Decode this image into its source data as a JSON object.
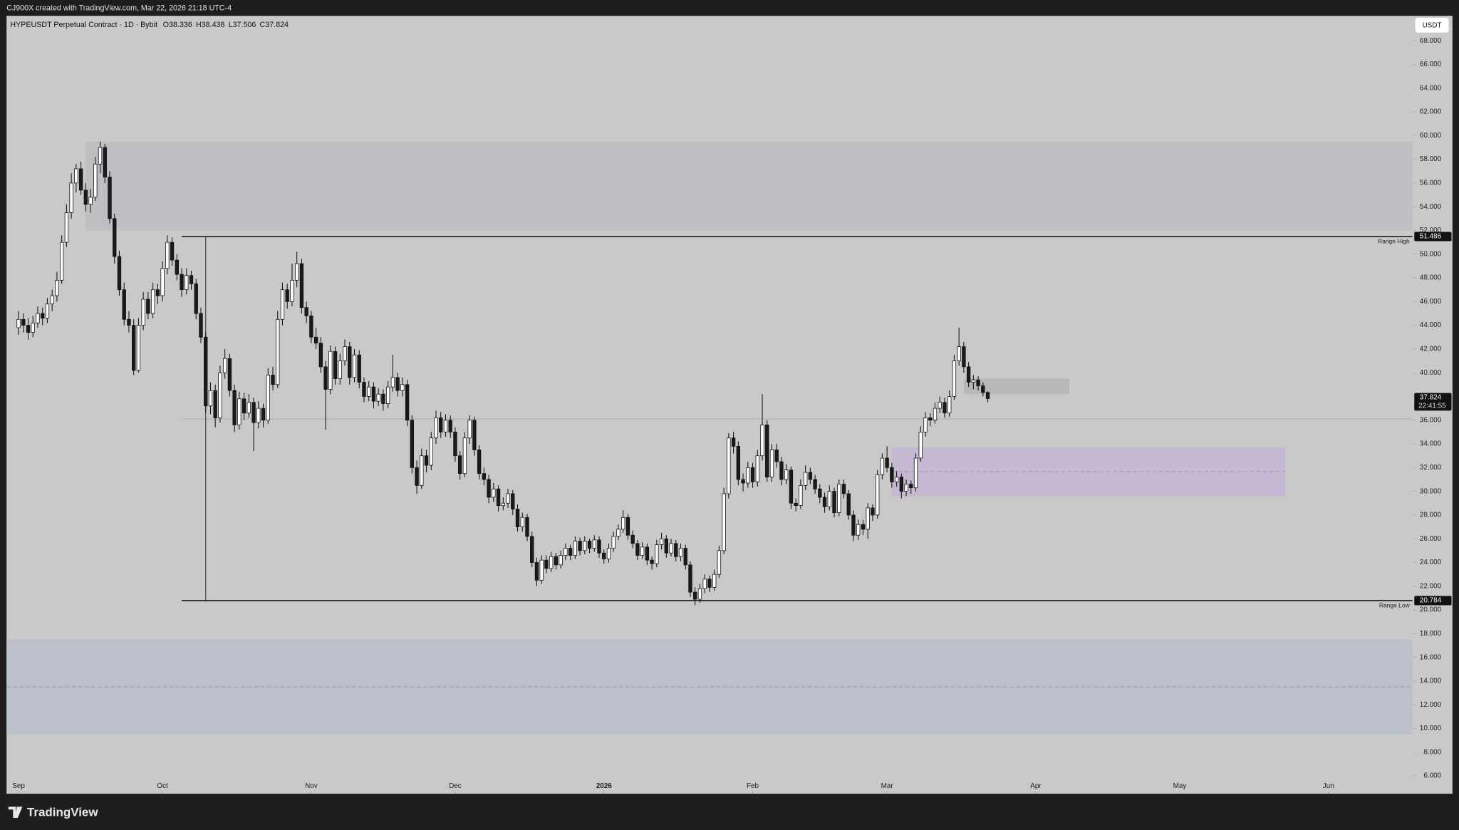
{
  "header": {
    "credit": "CJ900X created with TradingView.com, Mar 22, 2026 21:18 UTC-4",
    "brand": "TradingView"
  },
  "chart_data": {
    "type": "candlestick",
    "title": "HYPEUSDT Perpetual Contract · 1D · Bybit",
    "ohlc_header": [
      {
        "label": "O",
        "value": 38.336
      },
      {
        "label": "H",
        "value": 38.438
      },
      {
        "label": "L",
        "value": 37.506
      },
      {
        "label": "C",
        "value": 37.824
      }
    ],
    "currency": "USDT",
    "countdown": "22:41:55",
    "up_color": "#ffffff",
    "down_color": "#1a1a1a",
    "border_color": "#111111",
    "xlim": [
      -2.5,
      290.5
    ],
    "ylim": [
      4.5,
      70.1
    ],
    "xticks": [
      {
        "value": 0,
        "label": "Sep"
      },
      {
        "value": 30,
        "label": "Oct"
      },
      {
        "value": 61,
        "label": "Nov"
      },
      {
        "value": 91,
        "label": "Dec"
      },
      {
        "value": 122,
        "label": "2026"
      },
      {
        "value": 153,
        "label": "Feb"
      },
      {
        "value": 181,
        "label": "Mar"
      },
      {
        "value": 212,
        "label": "Apr"
      },
      {
        "value": 242,
        "label": "May"
      },
      {
        "value": 273,
        "label": "Jun"
      }
    ],
    "yticks": [
      {
        "value": 6,
        "label": "6.000"
      },
      {
        "value": 8,
        "label": "8.000"
      },
      {
        "value": 10,
        "label": "10.000"
      },
      {
        "value": 12,
        "label": "12.000"
      },
      {
        "value": 14,
        "label": "14.000"
      },
      {
        "value": 16,
        "label": "16.000"
      },
      {
        "value": 18,
        "label": "18.000"
      },
      {
        "value": 20,
        "label": "20.000"
      },
      {
        "value": 22,
        "label": "22.000"
      },
      {
        "value": 24,
        "label": "24.000"
      },
      {
        "value": 26,
        "label": "26.000"
      },
      {
        "value": 28,
        "label": "28.000"
      },
      {
        "value": 30,
        "label": "30.000"
      },
      {
        "value": 32,
        "label": "32.000"
      },
      {
        "value": 34,
        "label": "34.000"
      },
      {
        "value": 36,
        "label": "36.000"
      },
      {
        "value": 38,
        "label": "38.000"
      },
      {
        "value": 40,
        "label": "40.000"
      },
      {
        "value": 42,
        "label": "42.000"
      },
      {
        "value": 44,
        "label": "44.000"
      },
      {
        "value": 46,
        "label": "46.000"
      },
      {
        "value": 48,
        "label": "48.000"
      },
      {
        "value": 50,
        "label": "50.000"
      },
      {
        "value": 52,
        "label": "52.000"
      },
      {
        "value": 54,
        "label": "54.000"
      },
      {
        "value": 56,
        "label": "56.000"
      },
      {
        "value": 58,
        "label": "58.000"
      },
      {
        "value": 60,
        "label": "60.000"
      },
      {
        "value": 62,
        "label": "62.000"
      },
      {
        "value": 64,
        "label": "64.000"
      },
      {
        "value": 66,
        "label": "66.000"
      },
      {
        "value": 68,
        "label": "68.000"
      }
    ],
    "zones": [
      {
        "start": 14,
        "low": 52.0,
        "high": 59.5,
        "color": "#bdbec2"
      },
      {
        "start": 182,
        "end": 264,
        "low": 29.6,
        "high": 33.7,
        "mid": 31.65,
        "color": "#c3b6d4"
      },
      {
        "start": 197,
        "end": 219,
        "low": 38.2,
        "high": 39.5,
        "color": "#b6b6b6"
      },
      {
        "low": 9.5,
        "high": 17.5,
        "mid": 13.5,
        "color": "#babfca"
      }
    ],
    "lines": [
      {
        "label": "Range High",
        "value": 51.486,
        "start": 34
      },
      {
        "label": "Range Low",
        "value": 20.784,
        "start": 34
      }
    ],
    "level_lines": [
      {
        "value": 36.1,
        "start": 34
      }
    ],
    "vertical_lines": [
      {
        "x": 39,
        "from": 20.784,
        "to": 51.486
      }
    ],
    "ohlc": [
      [
        43.8,
        45.2,
        43.2,
        44.5
      ],
      [
        44.5,
        45.0,
        43.4,
        44.0
      ],
      [
        44.0,
        44.6,
        42.8,
        43.4
      ],
      [
        43.4,
        44.8,
        43.0,
        44.2
      ],
      [
        44.2,
        45.6,
        43.8,
        45.0
      ],
      [
        45.0,
        45.5,
        44.0,
        44.6
      ],
      [
        44.6,
        46.3,
        44.2,
        45.8
      ],
      [
        45.8,
        47.0,
        45.2,
        46.5
      ],
      [
        46.5,
        48.5,
        46.0,
        47.8
      ],
      [
        47.8,
        51.6,
        47.5,
        51.0
      ],
      [
        51.0,
        54.2,
        50.6,
        53.5
      ],
      [
        53.5,
        56.8,
        53.0,
        56.0
      ],
      [
        56.0,
        57.6,
        55.2,
        57.2
      ],
      [
        57.2,
        57.8,
        55.0,
        55.4
      ],
      [
        55.4,
        56.0,
        53.6,
        54.2
      ],
      [
        54.2,
        55.5,
        53.5,
        54.8
      ],
      [
        54.8,
        58.2,
        54.5,
        57.6
      ],
      [
        57.6,
        59.5,
        56.8,
        59.0
      ],
      [
        59.0,
        59.3,
        56.0,
        56.5
      ],
      [
        56.5,
        57.0,
        52.6,
        53.0
      ],
      [
        53.0,
        53.4,
        49.2,
        49.8
      ],
      [
        49.8,
        50.3,
        46.5,
        47.0
      ],
      [
        47.0,
        47.6,
        44.0,
        44.5
      ],
      [
        44.5,
        45.2,
        43.4,
        44.0
      ],
      [
        44.0,
        44.5,
        39.8,
        40.2
      ],
      [
        40.2,
        44.6,
        40.0,
        44.0
      ],
      [
        44.0,
        46.8,
        43.6,
        46.2
      ],
      [
        46.2,
        46.8,
        44.5,
        45.0
      ],
      [
        45.0,
        47.6,
        44.6,
        47.0
      ],
      [
        47.0,
        47.5,
        45.8,
        46.5
      ],
      [
        46.5,
        49.4,
        46.0,
        48.8
      ],
      [
        48.8,
        51.6,
        48.3,
        51.0
      ],
      [
        51.0,
        51.4,
        49.0,
        49.5
      ],
      [
        49.5,
        50.0,
        47.8,
        48.3
      ],
      [
        48.3,
        48.8,
        46.4,
        47.0
      ],
      [
        47.0,
        48.8,
        46.6,
        48.2
      ],
      [
        48.2,
        48.6,
        47.0,
        47.5
      ],
      [
        47.5,
        47.9,
        44.5,
        45.0
      ],
      [
        45.0,
        45.5,
        42.5,
        43.0
      ],
      [
        43.0,
        43.4,
        36.6,
        37.2
      ],
      [
        37.2,
        39.2,
        36.5,
        38.5
      ],
      [
        38.5,
        39.0,
        35.4,
        36.2
      ],
      [
        36.2,
        40.6,
        35.8,
        40.0
      ],
      [
        40.0,
        42.0,
        39.5,
        41.2
      ],
      [
        41.2,
        41.6,
        38.0,
        38.5
      ],
      [
        38.5,
        39.0,
        35.0,
        35.6
      ],
      [
        35.6,
        38.4,
        35.2,
        37.8
      ],
      [
        37.8,
        38.3,
        36.0,
        36.6
      ],
      [
        36.6,
        38.2,
        36.2,
        37.5
      ],
      [
        37.5,
        37.9,
        33.4,
        35.8
      ],
      [
        35.8,
        37.6,
        35.3,
        37.0
      ],
      [
        37.0,
        37.4,
        35.4,
        36.0
      ],
      [
        36.0,
        40.4,
        35.7,
        39.8
      ],
      [
        39.8,
        40.5,
        38.5,
        39.0
      ],
      [
        39.0,
        45.2,
        38.7,
        44.5
      ],
      [
        44.5,
        47.6,
        44.0,
        47.0
      ],
      [
        47.0,
        47.5,
        45.4,
        46.0
      ],
      [
        46.0,
        49.2,
        45.6,
        47.8
      ],
      [
        47.8,
        50.2,
        47.2,
        49.2
      ],
      [
        49.2,
        49.6,
        45.0,
        45.5
      ],
      [
        45.5,
        46.0,
        44.2,
        44.8
      ],
      [
        44.8,
        45.2,
        42.5,
        43.0
      ],
      [
        43.0,
        43.8,
        42.0,
        42.5
      ],
      [
        42.5,
        43.0,
        40.0,
        40.5
      ],
      [
        40.5,
        41.0,
        35.2,
        38.6
      ],
      [
        38.6,
        42.3,
        38.2,
        41.8
      ],
      [
        41.8,
        42.2,
        39.0,
        39.5
      ],
      [
        39.5,
        41.6,
        39.0,
        41.0
      ],
      [
        41.0,
        42.8,
        40.6,
        42.2
      ],
      [
        42.2,
        42.6,
        39.0,
        39.6
      ],
      [
        39.6,
        42.0,
        39.2,
        41.5
      ],
      [
        41.5,
        41.9,
        38.7,
        39.2
      ],
      [
        39.2,
        39.6,
        37.5,
        38.0
      ],
      [
        38.0,
        39.3,
        37.6,
        38.8
      ],
      [
        38.8,
        39.2,
        37.0,
        37.6
      ],
      [
        37.6,
        38.7,
        37.2,
        38.2
      ],
      [
        38.2,
        38.6,
        36.8,
        37.4
      ],
      [
        37.4,
        39.3,
        37.0,
        38.8
      ],
      [
        38.8,
        41.5,
        38.4,
        39.6
      ],
      [
        39.6,
        40.0,
        38.0,
        38.5
      ],
      [
        38.5,
        39.6,
        38.0,
        39.0
      ],
      [
        39.0,
        39.4,
        35.5,
        36.0
      ],
      [
        36.0,
        36.4,
        31.5,
        32.0
      ],
      [
        32.0,
        32.6,
        29.8,
        30.5
      ],
      [
        30.5,
        33.6,
        30.2,
        33.0
      ],
      [
        33.0,
        33.5,
        31.6,
        32.2
      ],
      [
        32.2,
        35.0,
        31.8,
        34.5
      ],
      [
        34.5,
        36.8,
        34.0,
        36.2
      ],
      [
        36.2,
        36.7,
        34.5,
        35.0
      ],
      [
        35.0,
        36.5,
        34.6,
        36.0
      ],
      [
        36.0,
        36.4,
        34.5,
        35.0
      ],
      [
        35.0,
        35.4,
        32.5,
        33.0
      ],
      [
        33.0,
        33.4,
        31.0,
        31.5
      ],
      [
        31.5,
        35.0,
        31.2,
        34.5
      ],
      [
        34.5,
        36.4,
        34.0,
        36.0
      ],
      [
        36.0,
        36.3,
        33.0,
        33.5
      ],
      [
        33.5,
        33.9,
        31.0,
        31.5
      ],
      [
        31.5,
        32.0,
        30.5,
        31.0
      ],
      [
        31.0,
        31.4,
        29.0,
        29.5
      ],
      [
        29.5,
        30.7,
        29.1,
        30.2
      ],
      [
        30.2,
        30.5,
        28.3,
        28.8
      ],
      [
        28.8,
        29.5,
        28.4,
        29.0
      ],
      [
        29.0,
        30.2,
        28.6,
        29.8
      ],
      [
        29.8,
        30.1,
        28.0,
        28.5
      ],
      [
        28.5,
        28.9,
        26.6,
        27.0
      ],
      [
        27.0,
        28.2,
        26.6,
        27.8
      ],
      [
        27.8,
        28.1,
        25.8,
        26.2
      ],
      [
        26.2,
        26.6,
        23.6,
        24.0
      ],
      [
        24.0,
        24.4,
        22.0,
        22.5
      ],
      [
        22.5,
        24.6,
        22.2,
        24.2
      ],
      [
        24.2,
        24.6,
        23.1,
        23.5
      ],
      [
        23.5,
        24.9,
        23.2,
        24.5
      ],
      [
        24.5,
        24.8,
        23.4,
        23.8
      ],
      [
        23.8,
        25.0,
        23.5,
        24.6
      ],
      [
        24.6,
        25.6,
        24.2,
        25.2
      ],
      [
        25.2,
        25.5,
        24.2,
        24.6
      ],
      [
        24.6,
        26.2,
        24.3,
        25.8
      ],
      [
        25.8,
        26.1,
        24.6,
        25.0
      ],
      [
        25.0,
        26.2,
        24.7,
        25.8
      ],
      [
        25.8,
        26.0,
        24.8,
        25.2
      ],
      [
        25.2,
        26.3,
        24.9,
        25.9
      ],
      [
        25.9,
        26.2,
        24.4,
        24.8
      ],
      [
        24.8,
        25.1,
        23.9,
        24.3
      ],
      [
        24.3,
        25.6,
        24.0,
        25.2
      ],
      [
        25.2,
        26.6,
        24.9,
        26.2
      ],
      [
        26.2,
        27.2,
        25.9,
        26.8
      ],
      [
        26.8,
        28.4,
        26.5,
        27.8
      ],
      [
        27.8,
        28.1,
        25.9,
        26.3
      ],
      [
        26.3,
        26.7,
        25.2,
        25.6
      ],
      [
        25.6,
        25.9,
        24.2,
        24.6
      ],
      [
        24.6,
        25.7,
        24.3,
        25.3
      ],
      [
        25.3,
        25.6,
        23.8,
        24.2
      ],
      [
        24.2,
        24.5,
        23.4,
        23.9
      ],
      [
        23.9,
        25.9,
        23.6,
        25.5
      ],
      [
        25.5,
        26.5,
        25.1,
        26.0
      ],
      [
        26.0,
        26.3,
        24.4,
        24.8
      ],
      [
        24.8,
        26.0,
        24.5,
        25.6
      ],
      [
        25.6,
        25.9,
        24.1,
        24.5
      ],
      [
        24.5,
        25.6,
        24.1,
        25.2
      ],
      [
        25.2,
        25.5,
        23.4,
        23.8
      ],
      [
        23.8,
        24.1,
        21.1,
        21.5
      ],
      [
        21.5,
        21.9,
        20.4,
        20.9
      ],
      [
        20.9,
        22.2,
        20.6,
        21.8
      ],
      [
        21.8,
        23.0,
        21.4,
        22.6
      ],
      [
        22.6,
        22.9,
        21.5,
        21.9
      ],
      [
        21.9,
        23.4,
        21.6,
        23.0
      ],
      [
        23.0,
        25.4,
        22.7,
        25.0
      ],
      [
        25.0,
        30.3,
        24.7,
        29.8
      ],
      [
        29.8,
        34.9,
        29.4,
        34.5
      ],
      [
        34.5,
        35.0,
        33.2,
        33.8
      ],
      [
        33.8,
        34.2,
        30.5,
        31.0
      ],
      [
        31.0,
        31.5,
        30.0,
        30.7
      ],
      [
        30.7,
        32.5,
        30.3,
        32.0
      ],
      [
        32.0,
        32.4,
        30.3,
        30.8
      ],
      [
        30.8,
        33.5,
        30.4,
        33.0
      ],
      [
        33.0,
        38.2,
        32.6,
        35.6
      ],
      [
        35.6,
        36.0,
        30.8,
        31.2
      ],
      [
        31.2,
        34.0,
        30.8,
        33.5
      ],
      [
        33.5,
        34.0,
        32.0,
        32.5
      ],
      [
        32.5,
        32.9,
        30.5,
        31.0
      ],
      [
        31.0,
        32.3,
        30.6,
        31.8
      ],
      [
        31.8,
        32.1,
        28.5,
        29.0
      ],
      [
        29.0,
        29.4,
        28.3,
        28.8
      ],
      [
        28.8,
        31.0,
        28.5,
        30.5
      ],
      [
        30.5,
        32.2,
        30.1,
        31.6
      ],
      [
        31.6,
        32.0,
        30.6,
        31.0
      ],
      [
        31.0,
        31.4,
        29.8,
        30.2
      ],
      [
        30.2,
        30.6,
        29.0,
        29.5
      ],
      [
        29.5,
        29.9,
        28.2,
        28.7
      ],
      [
        28.7,
        30.5,
        28.4,
        30.0
      ],
      [
        30.0,
        30.3,
        27.8,
        28.2
      ],
      [
        28.2,
        31.0,
        27.9,
        30.6
      ],
      [
        30.6,
        31.0,
        29.4,
        29.8
      ],
      [
        29.8,
        30.1,
        27.6,
        28.0
      ],
      [
        28.0,
        28.4,
        25.8,
        26.3
      ],
      [
        26.3,
        27.6,
        25.9,
        27.2
      ],
      [
        27.2,
        27.6,
        26.3,
        26.8
      ],
      [
        26.8,
        29.0,
        26.0,
        28.6
      ],
      [
        28.6,
        28.9,
        27.5,
        28.0
      ],
      [
        28.0,
        31.8,
        27.7,
        31.4
      ],
      [
        31.4,
        33.2,
        31.0,
        32.8
      ],
      [
        32.8,
        33.8,
        31.6,
        32.0
      ],
      [
        32.0,
        32.4,
        30.3,
        30.8
      ],
      [
        30.8,
        31.7,
        30.4,
        31.2
      ],
      [
        31.2,
        31.5,
        29.4,
        30.0
      ],
      [
        30.0,
        31.0,
        29.6,
        30.6
      ],
      [
        30.6,
        30.9,
        29.8,
        30.3
      ],
      [
        30.3,
        33.2,
        30.0,
        32.8
      ],
      [
        32.8,
        35.5,
        32.5,
        35.0
      ],
      [
        35.0,
        36.7,
        34.6,
        36.2
      ],
      [
        36.2,
        36.6,
        35.5,
        36.0
      ],
      [
        36.0,
        37.5,
        35.7,
        37.0
      ],
      [
        37.0,
        38.0,
        36.6,
        37.5
      ],
      [
        37.5,
        37.9,
        36.2,
        36.6
      ],
      [
        36.6,
        38.5,
        36.3,
        38.0
      ],
      [
        38.0,
        41.5,
        37.7,
        41.0
      ],
      [
        41.0,
        43.8,
        40.6,
        42.2
      ],
      [
        42.2,
        42.6,
        40.0,
        40.5
      ],
      [
        40.5,
        40.9,
        38.8,
        39.2
      ],
      [
        39.2,
        39.8,
        38.6,
        39.4
      ],
      [
        39.4,
        39.7,
        38.5,
        38.9
      ],
      [
        38.9,
        39.2,
        38.0,
        38.336
      ],
      [
        38.336,
        38.438,
        37.506,
        37.824
      ]
    ]
  }
}
